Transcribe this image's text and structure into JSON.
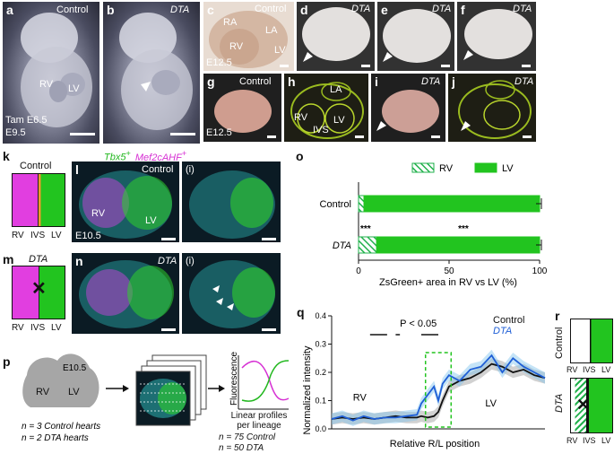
{
  "panels": {
    "a": {
      "label": "a",
      "tag": "Control",
      "rv": "RV",
      "lv": "LV",
      "tam": "Tam E6.5",
      "stage": "E9.5"
    },
    "b": {
      "label": "b",
      "tag": "DTA"
    },
    "c": {
      "label": "c",
      "tag": "Control",
      "ra": "RA",
      "la": "LA",
      "rv": "RV",
      "lv": "LV",
      "stage": "E12.5"
    },
    "d": {
      "label": "d",
      "tag": "DTA"
    },
    "e": {
      "label": "e",
      "tag": "DTA"
    },
    "f": {
      "label": "f",
      "tag": "DTA"
    },
    "g": {
      "label": "g",
      "tag": "Control",
      "stage": "E12.5"
    },
    "h": {
      "label": "h",
      "la": "LA",
      "rv": "RV",
      "lv": "LV",
      "ivs": "IVS"
    },
    "i": {
      "label": "i",
      "tag": "DTA"
    },
    "j": {
      "label": "j",
      "tag": "DTA"
    },
    "k": {
      "label": "k",
      "title": "Control",
      "rv": "RV",
      "ivs": "IVS",
      "lv": "LV"
    },
    "l": {
      "label": "l",
      "legend_a": "Tbx5",
      "legend_a_sup": "+",
      "legend_b": "Mef2cAHF",
      "legend_b_sup": "+",
      "tag": "Control",
      "sub": "(i)",
      "rv": "RV",
      "lv": "LV",
      "stage": "E10.5"
    },
    "m": {
      "label": "m",
      "title": "DTA",
      "rv": "RV",
      "ivs": "IVS",
      "lv": "LV"
    },
    "n": {
      "label": "n",
      "tag": "DTA",
      "sub": "(i)"
    },
    "p": {
      "label": "p",
      "stage": "E10.5",
      "rv": "RV",
      "lv": "LV",
      "n_line1": "n = 3 Control hearts",
      "n_line2": "n = 2 DTA hearts",
      "fluor_label": "Fluorescence",
      "caption1": "Linear profiles",
      "caption2": "per lineage",
      "count1": "n = 75 Control",
      "count2": "n = 50 DTA"
    },
    "r": {
      "label": "r",
      "control": "Control",
      "dta": "DTA",
      "rv": "RV",
      "ivs": "IVS",
      "lv": "LV"
    }
  },
  "chart_data": [
    {
      "panel": "o",
      "type": "bar",
      "orientation": "horizontal",
      "stacked": true,
      "categories": [
        "Control",
        "DTA"
      ],
      "series": [
        {
          "name": "RV",
          "values": [
            3,
            10
          ],
          "pattern": "hatched",
          "color": "#22b14c"
        },
        {
          "name": "LV",
          "values": [
            97,
            90
          ],
          "pattern": "solid",
          "color": "#22c41f"
        }
      ],
      "significance": [
        "***",
        "***"
      ],
      "xlabel": "ZsGreen+ area in RV vs LV (%)",
      "xticks": [
        0,
        50,
        100
      ],
      "xlim": [
        0,
        100
      ],
      "legend_position": "top"
    },
    {
      "panel": "q",
      "type": "line",
      "ylabel": "Normalized intensity",
      "xlabel": "Relative R/L position",
      "ylim": [
        0,
        0.4
      ],
      "yticks": [
        0,
        0.1,
        0.2,
        0.3,
        0.4
      ],
      "annotation": "P < 0.05",
      "region_labels": [
        "RV",
        "LV"
      ],
      "x": [
        0,
        0.05,
        0.1,
        0.15,
        0.2,
        0.25,
        0.3,
        0.35,
        0.4,
        0.42,
        0.45,
        0.48,
        0.5,
        0.52,
        0.55,
        0.6,
        0.65,
        0.7,
        0.75,
        0.8,
        0.85,
        0.9,
        0.95,
        1.0
      ],
      "series": [
        {
          "name": "Control",
          "color": "#111111",
          "values": [
            0.035,
            0.04,
            0.035,
            0.04,
            0.035,
            0.04,
            0.045,
            0.04,
            0.04,
            0.045,
            0.04,
            0.045,
            0.06,
            0.1,
            0.15,
            0.17,
            0.18,
            0.2,
            0.23,
            0.22,
            0.2,
            0.21,
            0.19,
            0.18
          ]
        },
        {
          "name": "DTA",
          "color": "#1f5fd6",
          "values": [
            0.035,
            0.045,
            0.03,
            0.045,
            0.035,
            0.04,
            0.04,
            0.045,
            0.05,
            0.09,
            0.12,
            0.15,
            0.1,
            0.16,
            0.19,
            0.17,
            0.21,
            0.22,
            0.26,
            0.2,
            0.25,
            0.22,
            0.2,
            0.18
          ]
        }
      ]
    }
  ]
}
